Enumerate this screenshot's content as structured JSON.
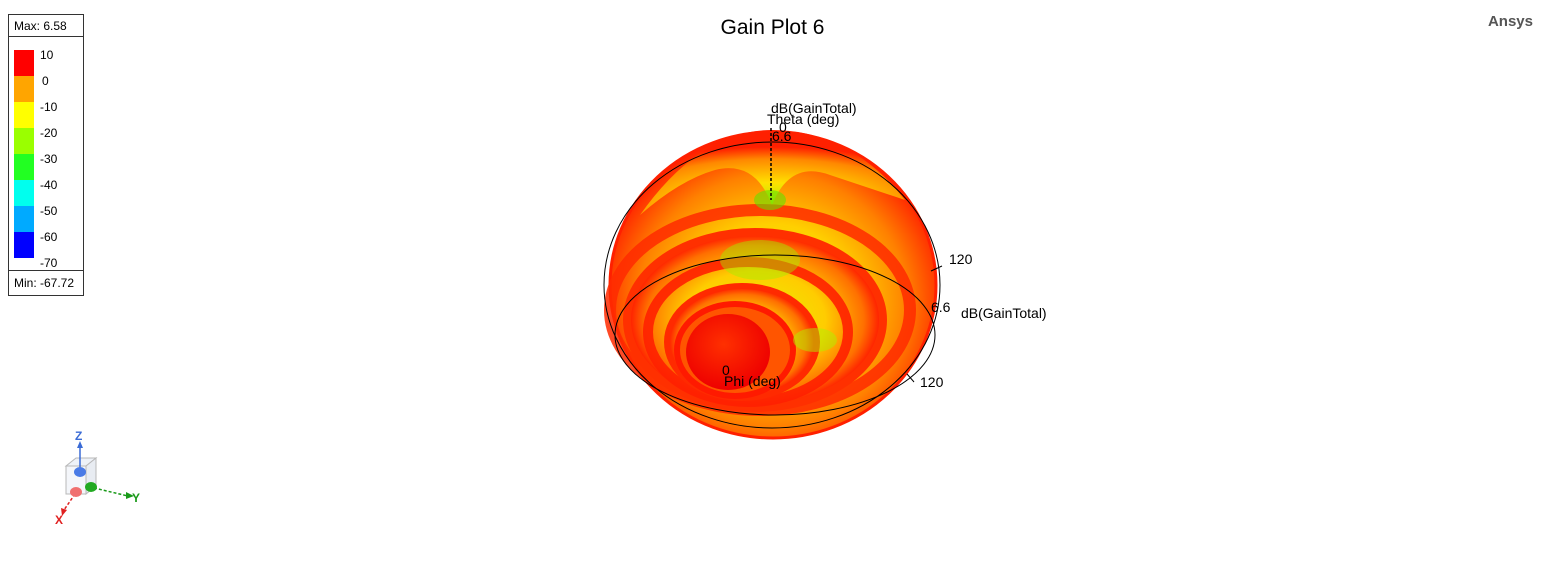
{
  "title": "Gain Plot 6",
  "brand": "Ansys",
  "legend": {
    "max": "Max: 6.58",
    "min": "Min: -67.72",
    "ticks": [
      "10",
      "0",
      "-10",
      "-20",
      "-30",
      "-40",
      "-50",
      "-60",
      "-70"
    ],
    "colors": [
      "#ff0000",
      "#ffa500",
      "#ffff00",
      "#9aff00",
      "#22ff22",
      "#00ffee",
      "#00aaff",
      "#0000ff"
    ]
  },
  "plot": {
    "quantity_top": "dB(GainTotal)",
    "theta_label": "Theta (deg)",
    "theta_zero": "0",
    "theta_max": "6.6",
    "theta_tick": "120",
    "quantity_right": "dB(GainTotal)",
    "right_max": "6.6",
    "phi_label": "Phi (deg)",
    "phi_zero": "0",
    "phi_tick": "120"
  },
  "axes": {
    "z": "Z",
    "y": "Y",
    "x": "X",
    "z_color": "#3a6bd6",
    "y_color": "#1a9a1a",
    "x_color": "#e02020"
  }
}
